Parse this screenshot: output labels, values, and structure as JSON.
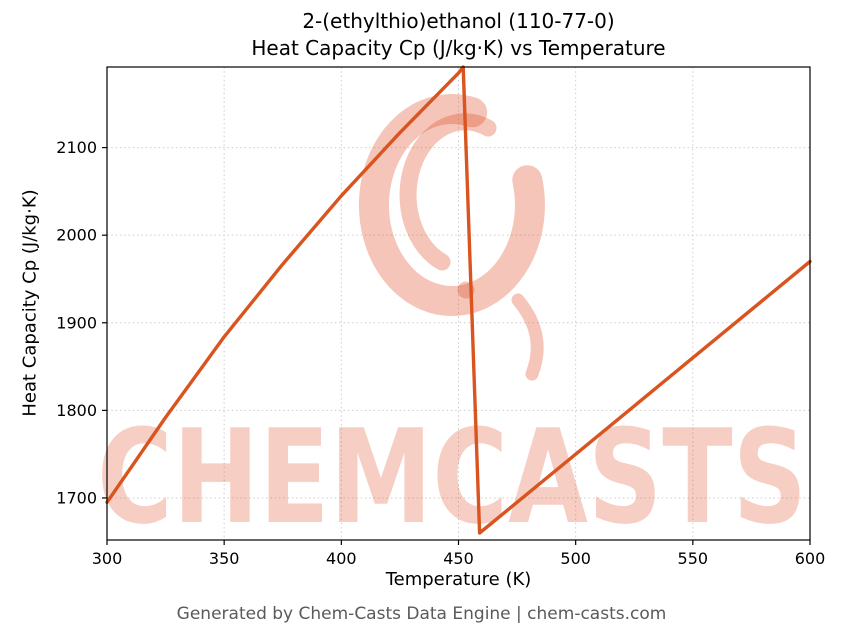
{
  "figure": {
    "title_line1": "2-(ethylthio)ethanol (110-77-0)",
    "title_line2": "Heat Capacity Cp (J/kg·K) vs Temperature"
  },
  "chart_data": {
    "type": "line",
    "title": "2-(ethylthio)ethanol (110-77-0)\nHeat Capacity Cp (J/kg·K) vs Temperature",
    "xlabel": "Temperature (K)",
    "ylabel": "Heat Capacity Cp (J/kg·K)",
    "xlim": [
      300,
      600
    ],
    "ylim": [
      1652,
      2192
    ],
    "xticks": [
      300,
      350,
      400,
      450,
      500,
      550,
      600
    ],
    "yticks": [
      1700,
      1800,
      1900,
      2000,
      2100
    ],
    "grid": true,
    "legend": "none",
    "line_color": "#d9541e",
    "grid_color": "#cccccc",
    "series": [
      {
        "name": "Heat Capacity Cp",
        "points": [
          [
            300,
            1695
          ],
          [
            325,
            1792
          ],
          [
            350,
            1884
          ],
          [
            375,
            1967
          ],
          [
            400,
            2045
          ],
          [
            425,
            2117
          ],
          [
            450,
            2185
          ],
          [
            452,
            2192
          ],
          [
            459,
            1660
          ],
          [
            500,
            1750
          ],
          [
            550,
            1860
          ],
          [
            600,
            1970
          ]
        ]
      }
    ]
  },
  "watermark": {
    "text": "CHEMCASTS",
    "color": "#dd4f28"
  },
  "footer": {
    "text": "Generated by Chem-Casts Data Engine | chem-casts.com"
  }
}
